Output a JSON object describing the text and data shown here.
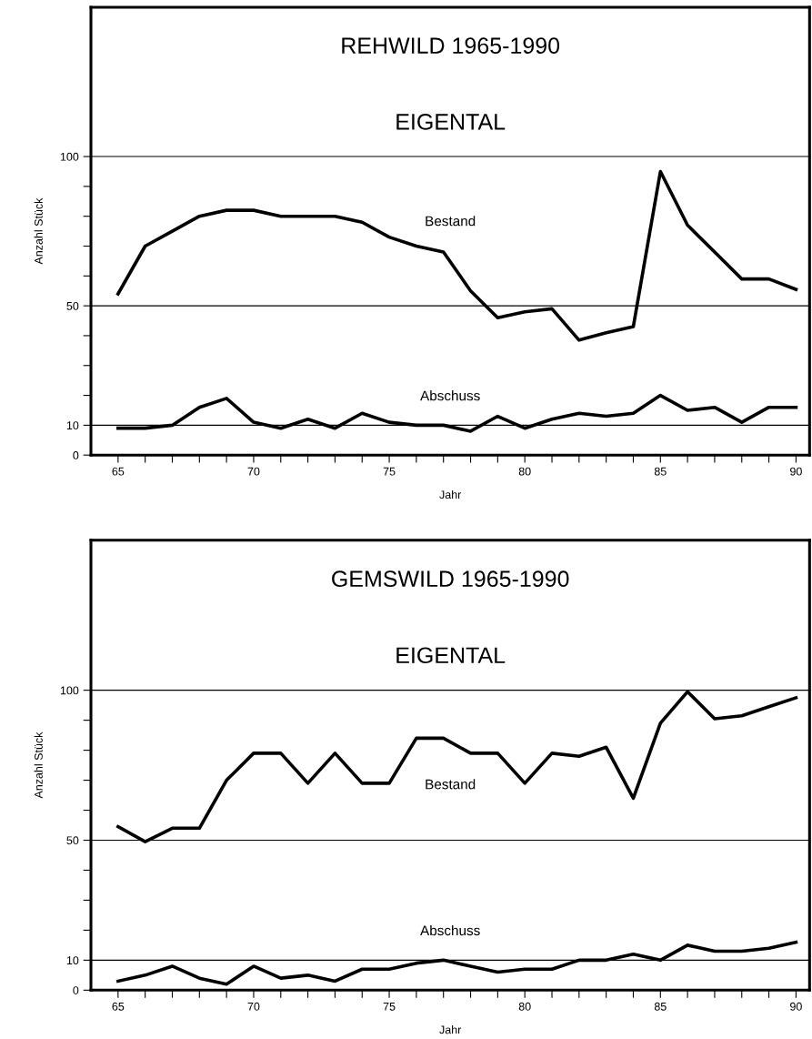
{
  "chart_data": [
    {
      "type": "line",
      "title": "REHWILD 1965-1990",
      "subtitle": "EIGENTAL",
      "xlabel": "Jahr",
      "ylabel": "Anzahl Stück",
      "x": [
        65,
        66,
        67,
        68,
        69,
        70,
        71,
        72,
        73,
        74,
        75,
        76,
        77,
        78,
        79,
        80,
        81,
        82,
        83,
        84,
        85,
        86,
        87,
        88,
        89,
        90
      ],
      "series": [
        {
          "name": "Bestand",
          "color": "#000000",
          "values": [
            54,
            70,
            75,
            80,
            82,
            82,
            80,
            80,
            80,
            78,
            73,
            70,
            68,
            55,
            46,
            48,
            49,
            38.5,
            41,
            43,
            95,
            77,
            68,
            59,
            59,
            55.5
          ]
        },
        {
          "name": "Abschuss",
          "color": "#000000",
          "values": [
            9,
            9,
            10,
            16,
            19,
            11,
            9,
            12,
            9,
            14,
            11,
            10,
            10,
            8,
            13,
            9,
            12,
            14,
            13,
            14,
            20,
            15,
            16,
            11,
            16,
            16
          ]
        }
      ],
      "xlim": [
        64,
        90.5
      ],
      "ylim": [
        0,
        150
      ],
      "xticks": [
        65,
        {
          "value": 66,
          "label": null
        },
        {
          "value": 67,
          "label": null
        },
        {
          "value": 68,
          "label": null
        },
        {
          "value": 69,
          "label": null
        },
        70,
        {
          "value": 71,
          "label": null
        },
        {
          "value": 72,
          "label": null
        },
        {
          "value": 73,
          "label": null
        },
        {
          "value": 74,
          "label": null
        },
        75,
        {
          "value": 76,
          "label": null
        },
        {
          "value": 77,
          "label": null
        },
        {
          "value": 78,
          "label": null
        },
        {
          "value": 79,
          "label": null
        },
        80,
        {
          "value": 81,
          "label": null
        },
        {
          "value": 82,
          "label": null
        },
        {
          "value": 83,
          "label": null
        },
        {
          "value": 84,
          "label": null
        },
        85,
        {
          "value": 86,
          "label": null
        },
        {
          "value": 87,
          "label": null
        },
        {
          "value": 88,
          "label": null
        },
        {
          "value": 89,
          "label": null
        },
        90
      ],
      "yticks": [
        0,
        10,
        {
          "value": 20,
          "label": null
        },
        {
          "value": 30,
          "label": null
        },
        {
          "value": 40,
          "label": null
        },
        50,
        {
          "value": 60,
          "label": null
        },
        {
          "value": 70,
          "label": null
        },
        {
          "value": 80,
          "label": null
        },
        {
          "value": 90,
          "label": null
        },
        100
      ],
      "ref_lines": [
        {
          "axis": "y",
          "value": 10,
          "color": "#000000"
        },
        {
          "axis": "y",
          "value": 50,
          "color": "#000000"
        },
        {
          "axis": "y",
          "value": 100,
          "color": "#000000"
        }
      ],
      "grid": false,
      "legend": false,
      "marker": "none",
      "line_style": "solid"
    },
    {
      "type": "line",
      "title": "GEMSWILD 1965-1990",
      "subtitle": "EIGENTAL",
      "xlabel": "Jahr",
      "ylabel": "Anzahl Stück",
      "x": [
        65,
        66,
        67,
        68,
        69,
        70,
        71,
        72,
        73,
        74,
        75,
        76,
        77,
        78,
        79,
        80,
        81,
        82,
        83,
        84,
        85,
        86,
        87,
        88,
        89,
        90
      ],
      "series": [
        {
          "name": "Bestand",
          "color": "#000000",
          "values": [
            54.5,
            49.5,
            54,
            54,
            70,
            79,
            79,
            69,
            79,
            69,
            69,
            84,
            84,
            79,
            79,
            69,
            79,
            78,
            81,
            64,
            89,
            99.5,
            90.5,
            91.5,
            94.5,
            97.5
          ]
        },
        {
          "name": "Abschuss",
          "color": "#000000",
          "values": [
            3,
            5,
            8,
            4,
            2,
            8,
            4,
            5,
            3,
            7,
            7,
            9,
            10,
            8,
            6,
            7,
            7,
            10,
            10,
            12,
            10,
            15,
            13,
            13,
            14,
            16
          ]
        }
      ],
      "xlim": [
        64,
        90.5
      ],
      "ylim": [
        0,
        150
      ],
      "xticks": [
        65,
        {
          "value": 66,
          "label": null
        },
        {
          "value": 67,
          "label": null
        },
        {
          "value": 68,
          "label": null
        },
        {
          "value": 69,
          "label": null
        },
        70,
        {
          "value": 71,
          "label": null
        },
        {
          "value": 72,
          "label": null
        },
        {
          "value": 73,
          "label": null
        },
        {
          "value": 74,
          "label": null
        },
        75,
        {
          "value": 76,
          "label": null
        },
        {
          "value": 77,
          "label": null
        },
        {
          "value": 78,
          "label": null
        },
        {
          "value": 79,
          "label": null
        },
        80,
        {
          "value": 81,
          "label": null
        },
        {
          "value": 82,
          "label": null
        },
        {
          "value": 83,
          "label": null
        },
        {
          "value": 84,
          "label": null
        },
        85,
        {
          "value": 86,
          "label": null
        },
        {
          "value": 87,
          "label": null
        },
        {
          "value": 88,
          "label": null
        },
        {
          "value": 89,
          "label": null
        },
        90
      ],
      "yticks": [
        0,
        10,
        {
          "value": 20,
          "label": null
        },
        {
          "value": 30,
          "label": null
        },
        {
          "value": 40,
          "label": null
        },
        50,
        {
          "value": 60,
          "label": null
        },
        {
          "value": 70,
          "label": null
        },
        {
          "value": 80,
          "label": null
        },
        {
          "value": 90,
          "label": null
        },
        100
      ],
      "ref_lines": [
        {
          "axis": "y",
          "value": 10,
          "color": "#000000"
        },
        {
          "axis": "y",
          "value": 50,
          "color": "#000000"
        },
        {
          "axis": "y",
          "value": 100,
          "color": "#000000"
        }
      ],
      "grid": false,
      "legend": false,
      "marker": "none",
      "line_style": "solid"
    }
  ]
}
